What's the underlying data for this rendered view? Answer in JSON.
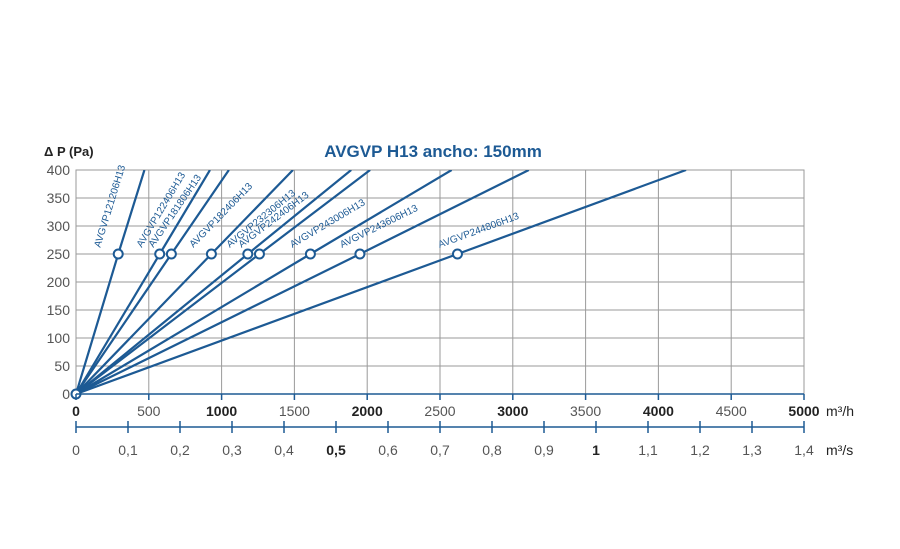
{
  "chart_data": {
    "type": "line",
    "title": "AVGVP H13  ancho: 150mm",
    "ylabel": "Δ P (Pa)",
    "ylim": [
      0,
      400
    ],
    "y_ticks": [
      "0",
      "50",
      "100",
      "150",
      "200",
      "250",
      "300",
      "350",
      "400"
    ],
    "xlim": [
      0,
      5000
    ],
    "x_ticks": [
      "0",
      "500",
      "1000",
      "1500",
      "2000",
      "2500",
      "3000",
      "3500",
      "4000",
      "4500",
      "5000"
    ],
    "x_ticks_bold": [
      "0",
      "1000",
      "2000",
      "3000",
      "4000",
      "5000"
    ],
    "x_unit": "m³/h",
    "x2_ticks": [
      "0",
      "0,1",
      "0,2",
      "0,3",
      "0,4",
      "0,5",
      "0,6",
      "0,7",
      "0,8",
      "0,9",
      "1",
      "1,1",
      "1,2",
      "1,3",
      "1,4"
    ],
    "x2_ticks_bold": [
      "0,5",
      "1"
    ],
    "x2_unit": "m³/s",
    "x2_lim": [
      0,
      1.4
    ],
    "marker_pressure": 250,
    "grid": true,
    "series": [
      {
        "name": "AVGVP121206H13",
        "x": [
          0,
          290,
          470
        ],
        "y": [
          0,
          250,
          400
        ]
      },
      {
        "name": "AVGVP122406H13",
        "x": [
          0,
          575,
          920
        ],
        "y": [
          0,
          250,
          400
        ]
      },
      {
        "name": "AVGVP181806H13",
        "x": [
          0,
          655,
          1050
        ],
        "y": [
          0,
          250,
          400
        ]
      },
      {
        "name": "AVGVP182406H13",
        "x": [
          0,
          930,
          1490
        ],
        "y": [
          0,
          250,
          400
        ]
      },
      {
        "name": "AVGVP232306H13",
        "x": [
          0,
          1180,
          1890
        ],
        "y": [
          0,
          250,
          400
        ]
      },
      {
        "name": "AVGVP242406H13",
        "x": [
          0,
          1260,
          2020
        ],
        "y": [
          0,
          250,
          400
        ]
      },
      {
        "name": "AVGVP243006H13",
        "x": [
          0,
          1610,
          2580
        ],
        "y": [
          0,
          250,
          400
        ]
      },
      {
        "name": "AVGVP243606H13",
        "x": [
          0,
          1950,
          3110
        ],
        "y": [
          0,
          250,
          400
        ]
      },
      {
        "name": "AVGVP244806H13",
        "x": [
          0,
          2620,
          4190
        ],
        "y": [
          0,
          250,
          400
        ]
      }
    ],
    "colors": {
      "line": "#1d5a94",
      "grid": "#9a9a9a",
      "axis": "#1d5a94",
      "text": "#222222"
    }
  }
}
